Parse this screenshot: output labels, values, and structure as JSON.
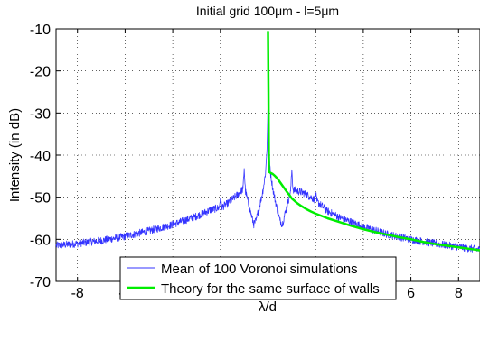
{
  "chart_data": {
    "type": "line",
    "title": "Initial grid 100μm - l=5μm",
    "xlabel": "λ/d",
    "ylabel": "Intensity (in dB)",
    "xlim": [
      -8.9,
      8.9
    ],
    "ylim": [
      -70,
      -10
    ],
    "xticks": [
      -8,
      -6,
      -4,
      -2,
      0,
      2,
      4,
      6,
      8
    ],
    "yticks": [
      -70,
      -60,
      -50,
      -40,
      -30,
      -20,
      -10
    ],
    "grid": true,
    "legend_position": "bottom-center",
    "series": [
      {
        "name": "Mean of 100 Voronoi simulations",
        "color": "#3333ff",
        "noisy": true,
        "points": [
          [
            -8.9,
            -61.5
          ],
          [
            -8.0,
            -61.0
          ],
          [
            -7.0,
            -60.3
          ],
          [
            -6.0,
            -59.3
          ],
          [
            -5.0,
            -58.0
          ],
          [
            -4.0,
            -56.5
          ],
          [
            -3.0,
            -54.5
          ],
          [
            -2.4,
            -53.0
          ],
          [
            -2.05,
            -52.5
          ],
          [
            -2.0,
            -50.3
          ],
          [
            -1.95,
            -52.4
          ],
          [
            -1.7,
            -51.5
          ],
          [
            -1.4,
            -50.0
          ],
          [
            -1.2,
            -49.0
          ],
          [
            -1.05,
            -48.0
          ],
          [
            -1.0,
            -43.2
          ],
          [
            -0.95,
            -48.5
          ],
          [
            -0.8,
            -52.0
          ],
          [
            -0.6,
            -56.5
          ],
          [
            -0.5,
            -55.5
          ],
          [
            -0.35,
            -52.0
          ],
          [
            -0.2,
            -48.0
          ],
          [
            -0.1,
            -44.0
          ],
          [
            -0.04,
            -38.0
          ],
          [
            0.0,
            -28.5
          ],
          [
            0.04,
            -38.0
          ],
          [
            0.1,
            -44.0
          ],
          [
            0.2,
            -48.0
          ],
          [
            0.35,
            -52.0
          ],
          [
            0.5,
            -55.5
          ],
          [
            0.6,
            -56.5
          ],
          [
            0.8,
            -52.0
          ],
          [
            0.95,
            -48.5
          ],
          [
            1.0,
            -43.5
          ],
          [
            1.05,
            -48.2
          ],
          [
            1.2,
            -48.5
          ],
          [
            1.5,
            -49.0
          ],
          [
            1.95,
            -50.5
          ],
          [
            2.0,
            -49.0
          ],
          [
            2.05,
            -51.0
          ],
          [
            2.5,
            -53.3
          ],
          [
            3.0,
            -54.8
          ],
          [
            4.0,
            -57.0
          ],
          [
            5.0,
            -58.8
          ],
          [
            6.0,
            -60.0
          ],
          [
            7.0,
            -61.0
          ],
          [
            8.0,
            -61.8
          ],
          [
            8.9,
            -62.5
          ]
        ]
      },
      {
        "name": "Theory for the same surface of walls",
        "color": "#00ee00",
        "noisy": false,
        "points": [
          [
            0.0,
            -10.5
          ],
          [
            0.02,
            -25.0
          ],
          [
            0.04,
            -44.0
          ],
          [
            0.1,
            -44.2
          ],
          [
            0.2,
            -44.5
          ],
          [
            0.3,
            -45.0
          ],
          [
            0.4,
            -45.6
          ],
          [
            0.5,
            -46.4
          ],
          [
            0.6,
            -47.2
          ],
          [
            0.7,
            -48.0
          ],
          [
            0.8,
            -48.8
          ],
          [
            0.9,
            -49.5
          ],
          [
            1.0,
            -50.3
          ],
          [
            1.2,
            -51.3
          ],
          [
            1.4,
            -52.1
          ],
          [
            1.6,
            -52.8
          ],
          [
            1.8,
            -53.4
          ],
          [
            2.0,
            -53.9
          ],
          [
            2.5,
            -55.0
          ],
          [
            3.0,
            -55.9
          ],
          [
            3.5,
            -56.8
          ],
          [
            4.0,
            -57.6
          ],
          [
            4.5,
            -58.3
          ],
          [
            5.0,
            -58.9
          ],
          [
            5.5,
            -59.5
          ],
          [
            6.0,
            -60.0
          ],
          [
            6.5,
            -60.6
          ],
          [
            7.0,
            -61.1
          ],
          [
            7.5,
            -61.5
          ],
          [
            8.0,
            -61.9
          ],
          [
            8.5,
            -62.3
          ],
          [
            8.9,
            -62.6
          ]
        ]
      }
    ]
  }
}
